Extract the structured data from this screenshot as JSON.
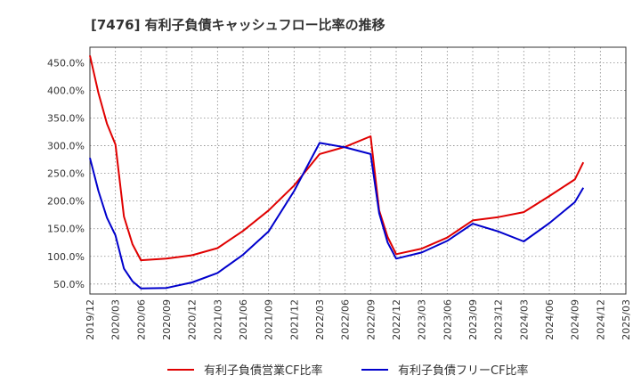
{
  "colors": {
    "series1": "#e00000",
    "series2": "#0000cc",
    "grid": "#888888",
    "frame": "#333333"
  },
  "chart_data": {
    "type": "line",
    "title": "[7476]  有利子負債キャッシュフロー比率の推移",
    "xlabel": "",
    "ylabel": "",
    "x_ticks": [
      "2019/12",
      "2020/03",
      "2020/06",
      "2020/09",
      "2020/12",
      "2021/03",
      "2021/06",
      "2021/09",
      "2021/12",
      "2022/03",
      "2022/06",
      "2022/09",
      "2022/12",
      "2023/03",
      "2023/06",
      "2023/09",
      "2023/12",
      "2024/03",
      "2024/06",
      "2024/09",
      "2024/12",
      "2025/03"
    ],
    "y_ticks": [
      "50.0%",
      "100.0%",
      "150.0%",
      "200.0%",
      "250.0%",
      "300.0%",
      "350.0%",
      "400.0%",
      "450.0%"
    ],
    "y_tick_values": [
      50,
      100,
      150,
      200,
      250,
      300,
      350,
      400,
      450
    ],
    "xlim_months": [
      0,
      63
    ],
    "ylim": [
      32,
      478
    ],
    "grid": true,
    "legend": "bottom",
    "series": [
      {
        "name": "有利子負債営業CF比率",
        "color": "#e00000",
        "points": [
          [
            0,
            463
          ],
          [
            1,
            395
          ],
          [
            2,
            340
          ],
          [
            3,
            302
          ],
          [
            4,
            172
          ],
          [
            5,
            122
          ],
          [
            6,
            93
          ],
          [
            9,
            96
          ],
          [
            12,
            102
          ],
          [
            15,
            115
          ],
          [
            18,
            146
          ],
          [
            21,
            183
          ],
          [
            24,
            228
          ],
          [
            27,
            285
          ],
          [
            30,
            298
          ],
          [
            33,
            317
          ],
          [
            34,
            183
          ],
          [
            35,
            135
          ],
          [
            36,
            104
          ],
          [
            39,
            114
          ],
          [
            42,
            134
          ],
          [
            45,
            165
          ],
          [
            48,
            171
          ],
          [
            51,
            180
          ],
          [
            54,
            209
          ],
          [
            57,
            239
          ],
          [
            58,
            270
          ]
        ]
      },
      {
        "name": "有利子負債フリーCF比率",
        "color": "#0000cc",
        "points": [
          [
            0,
            278
          ],
          [
            1,
            218
          ],
          [
            2,
            170
          ],
          [
            3,
            138
          ],
          [
            4,
            78
          ],
          [
            5,
            55
          ],
          [
            6,
            42
          ],
          [
            9,
            43
          ],
          [
            12,
            53
          ],
          [
            15,
            70
          ],
          [
            18,
            103
          ],
          [
            21,
            145
          ],
          [
            24,
            218
          ],
          [
            27,
            305
          ],
          [
            30,
            297
          ],
          [
            33,
            285
          ],
          [
            34,
            178
          ],
          [
            35,
            125
          ],
          [
            36,
            96
          ],
          [
            39,
            107
          ],
          [
            42,
            128
          ],
          [
            45,
            159
          ],
          [
            48,
            145
          ],
          [
            51,
            127
          ],
          [
            54,
            160
          ],
          [
            57,
            198
          ],
          [
            58,
            224
          ]
        ]
      }
    ]
  }
}
